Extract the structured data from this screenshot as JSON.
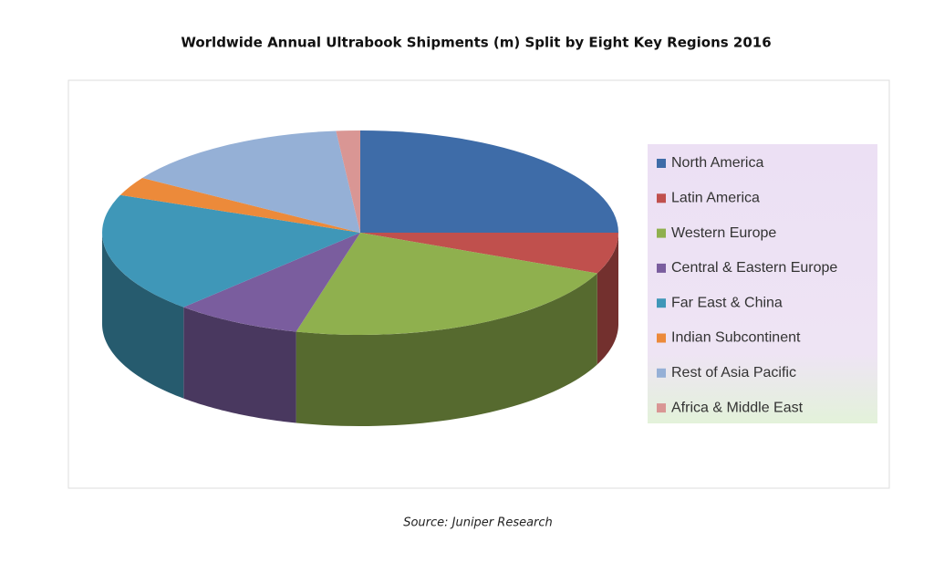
{
  "chart_data": {
    "type": "pie",
    "title": "Worldwide Annual Ultrabook Shipments (m) Split by Eight Key Regions 2016",
    "categories": [
      "North America",
      "Latin America",
      "Western Europe",
      "Central & Eastern Europe",
      "Far East & China",
      "Indian Subcontinent",
      "Rest of Asia Pacific",
      "Africa & Middle East"
    ],
    "values": [
      25,
      6.5,
      22.5,
      8,
      19,
      3,
      14.5,
      1.5
    ],
    "colors": [
      "#3e6ca8",
      "#c0504d",
      "#8fb04e",
      "#7a5d9e",
      "#3f97b8",
      "#ec8a3a",
      "#95b0d6",
      "#d99694"
    ],
    "source": "Source: Juniper Research"
  }
}
